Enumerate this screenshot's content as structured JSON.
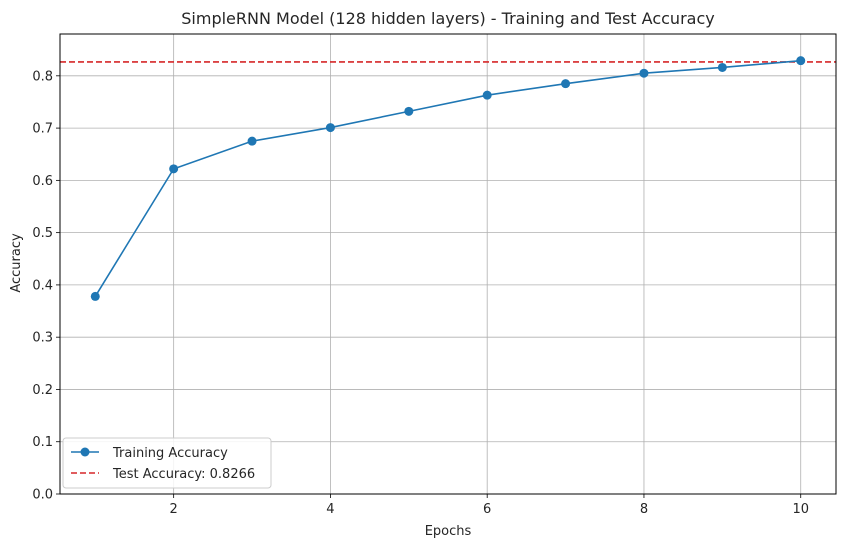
{
  "chart_data": {
    "type": "line",
    "title": "SimpleRNN Model (128 hidden layers) - Training and Test Accuracy",
    "xlabel": "Epochs",
    "ylabel": "Accuracy",
    "x": [
      1,
      2,
      3,
      4,
      5,
      6,
      7,
      8,
      9,
      10
    ],
    "xlim": [
      0.55,
      10.45
    ],
    "ylim": [
      0,
      0.88
    ],
    "xticks": [
      2,
      4,
      6,
      8,
      10
    ],
    "yticks": [
      0.0,
      0.1,
      0.2,
      0.3,
      0.4,
      0.5,
      0.6,
      0.7,
      0.8
    ],
    "xtick_labels": [
      "2",
      "4",
      "6",
      "8",
      "10"
    ],
    "ytick_labels": [
      "0.0",
      "0.1",
      "0.2",
      "0.3",
      "0.4",
      "0.5",
      "0.6",
      "0.7",
      "0.8"
    ],
    "grid": true,
    "legend_position": "lower-left",
    "series": [
      {
        "name": "Training Accuracy",
        "style": "solid line with circle markers",
        "color": "#1f77b4",
        "values": [
          0.378,
          0.622,
          0.675,
          0.701,
          0.732,
          0.763,
          0.785,
          0.805,
          0.816,
          0.829
        ]
      }
    ],
    "reference_line": {
      "name": "Test Accuracy: 0.8266",
      "orientation": "horizontal",
      "style": "dashed",
      "color": "#d62728",
      "value": 0.8266
    }
  }
}
